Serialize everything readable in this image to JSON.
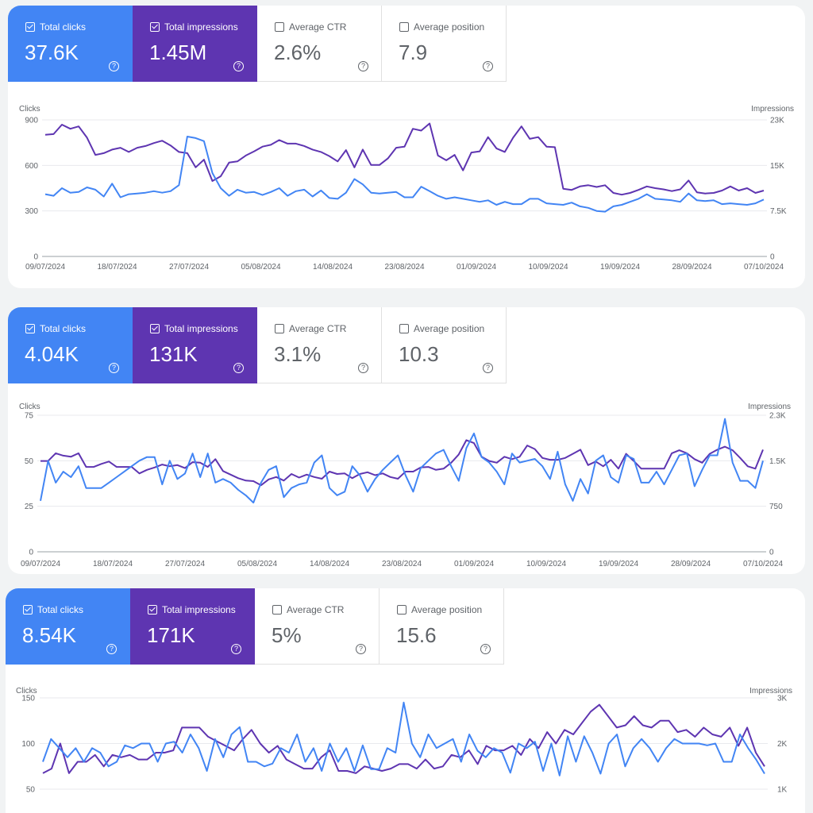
{
  "labels": {
    "clicks": "Total clicks",
    "impressions": "Total impressions",
    "ctr": "Average CTR",
    "position": "Average position",
    "help": "?"
  },
  "colors": {
    "clicks": "#4285f4",
    "impressions": "#5e35b1"
  },
  "panels": [
    {
      "metrics": {
        "clicks": "37.6K",
        "impressions": "1.45M",
        "ctr": "2.6%",
        "position": "7.9"
      },
      "checked": {
        "clicks": true,
        "impressions": true,
        "ctr": false,
        "position": false
      }
    },
    {
      "metrics": {
        "clicks": "4.04K",
        "impressions": "131K",
        "ctr": "3.1%",
        "position": "10.3"
      },
      "checked": {
        "clicks": true,
        "impressions": true,
        "ctr": false,
        "position": false
      }
    },
    {
      "metrics": {
        "clicks": "8.54K",
        "impressions": "171K",
        "ctr": "5%",
        "position": "15.6"
      },
      "checked": {
        "clicks": true,
        "impressions": true,
        "ctr": false,
        "position": false
      }
    }
  ],
  "chart_data": [
    {
      "type": "line",
      "ylabel_left": "Clicks",
      "ylabel_right": "Impressions",
      "left_ticks": [
        "0",
        "300",
        "600",
        "900"
      ],
      "left_ylim": [
        0,
        900
      ],
      "right_ticks": [
        "0",
        "7.5K",
        "15K",
        "23K"
      ],
      "right_ylim": [
        0,
        23000
      ],
      "x_tick_labels": [
        "09/07/2024",
        "18/07/2024",
        "27/07/2024",
        "05/08/2024",
        "14/08/2024",
        "23/08/2024",
        "01/09/2024",
        "10/09/2024",
        "19/09/2024",
        "28/09/2024",
        "07/10/2024"
      ],
      "series": [
        {
          "name": "Clicks",
          "axis": "left",
          "values": [
            410,
            400,
            450,
            420,
            425,
            455,
            440,
            395,
            480,
            390,
            410,
            415,
            420,
            430,
            420,
            430,
            470,
            790,
            780,
            760,
            550,
            450,
            400,
            440,
            420,
            425,
            405,
            425,
            450,
            400,
            430,
            440,
            395,
            435,
            385,
            380,
            420,
            510,
            475,
            420,
            415,
            420,
            425,
            390,
            390,
            460,
            430,
            400,
            380,
            390,
            380,
            370,
            360,
            370,
            340,
            360,
            345,
            345,
            380,
            380,
            350,
            345,
            340,
            355,
            330,
            320,
            300,
            295,
            330,
            340,
            360,
            380,
            410,
            380,
            375,
            370,
            360,
            415,
            370,
            365,
            370,
            345,
            350,
            345,
            340,
            350,
            375
          ]
        },
        {
          "name": "Impressions",
          "axis": "right",
          "values": [
            20500,
            20600,
            22200,
            21500,
            21900,
            20000,
            17100,
            17400,
            18000,
            18300,
            17600,
            18300,
            18600,
            19100,
            19500,
            18700,
            17600,
            17400,
            15000,
            16300,
            12700,
            13500,
            15800,
            16000,
            17000,
            17700,
            18500,
            18800,
            19600,
            19000,
            19000,
            18600,
            18000,
            17600,
            16900,
            16000,
            17900,
            15000,
            18000,
            15400,
            15400,
            16500,
            18300,
            18500,
            21500,
            21200,
            22400,
            17000,
            16200,
            17100,
            14500,
            17500,
            17700,
            20100,
            18200,
            17600,
            20000,
            21900,
            19800,
            20100,
            18500,
            18400,
            11400,
            11200,
            11800,
            12000,
            11700,
            12000,
            10700,
            10400,
            10700,
            11200,
            11800,
            11500,
            11300,
            11000,
            11300,
            12800,
            10800,
            10600,
            10700,
            11100,
            11800,
            11100,
            11500,
            10700,
            11100
          ]
        }
      ]
    },
    {
      "type": "line",
      "ylabel_left": "Clicks",
      "ylabel_right": "Impressions",
      "left_ticks": [
        "0",
        "25",
        "50",
        "75"
      ],
      "left_ylim": [
        0,
        75
      ],
      "right_ticks": [
        "0",
        "750",
        "1.5K",
        "2.3K"
      ],
      "right_ylim": [
        0,
        2300
      ],
      "x_tick_labels": [
        "09/07/2024",
        "18/07/2024",
        "27/07/2024",
        "05/08/2024",
        "14/08/2024",
        "23/08/2024",
        "01/09/2024",
        "10/09/2024",
        "19/09/2024",
        "28/09/2024",
        "07/10/2024"
      ],
      "series": [
        {
          "name": "Clicks",
          "axis": "left",
          "values": [
            28,
            50,
            38,
            44,
            41,
            47,
            35,
            35,
            35,
            38,
            41,
            44,
            47,
            50,
            52,
            52,
            37,
            50,
            40,
            43,
            54,
            41,
            54,
            38,
            40,
            38,
            34,
            31,
            27,
            38,
            45,
            47,
            30,
            35,
            37,
            38,
            49,
            53,
            35,
            31,
            33,
            47,
            42,
            33,
            40,
            45,
            49,
            53,
            42,
            33,
            46,
            50,
            54,
            56,
            47,
            39,
            57,
            65,
            52,
            49,
            44,
            37,
            54,
            49,
            50,
            51,
            47,
            40,
            55,
            37,
            28,
            40,
            32,
            50,
            53,
            41,
            38,
            53,
            51,
            38,
            38,
            44,
            37,
            45,
            53,
            54,
            36,
            45,
            53,
            53,
            73,
            49,
            39,
            39,
            35,
            50
          ]
        },
        {
          "name": "Impressions",
          "axis": "right",
          "values": [
            1530,
            1530,
            1660,
            1620,
            1600,
            1660,
            1430,
            1430,
            1480,
            1520,
            1430,
            1430,
            1430,
            1320,
            1380,
            1420,
            1470,
            1440,
            1460,
            1410,
            1510,
            1500,
            1430,
            1560,
            1360,
            1300,
            1240,
            1200,
            1190,
            1120,
            1220,
            1260,
            1200,
            1310,
            1250,
            1300,
            1260,
            1230,
            1350,
            1310,
            1320,
            1240,
            1310,
            1340,
            1290,
            1320,
            1260,
            1230,
            1350,
            1350,
            1420,
            1430,
            1380,
            1400,
            1500,
            1640,
            1880,
            1830,
            1600,
            1530,
            1500,
            1600,
            1560,
            1600,
            1790,
            1730,
            1580,
            1550,
            1550,
            1580,
            1650,
            1720,
            1460,
            1520,
            1440,
            1550,
            1400,
            1650,
            1530,
            1400,
            1400,
            1400,
            1400,
            1660,
            1710,
            1660,
            1560,
            1500,
            1650,
            1720,
            1770,
            1710,
            1580,
            1440,
            1400,
            1720
          ]
        }
      ]
    },
    {
      "type": "line",
      "ylabel_left": "Clicks",
      "ylabel_right": "Impressions",
      "left_ticks": [
        "50",
        "100",
        "150"
      ],
      "left_ylim": [
        50,
        150
      ],
      "right_ticks": [
        "1K",
        "2K",
        "3K"
      ],
      "right_ylim": [
        1000,
        3000
      ],
      "x_tick_labels": [],
      "series": [
        {
          "name": "Clicks",
          "axis": "left",
          "values": [
            80,
            105,
            95,
            85,
            95,
            80,
            95,
            90,
            75,
            80,
            98,
            95,
            100,
            100,
            80,
            100,
            102,
            90,
            110,
            95,
            70,
            105,
            85,
            110,
            118,
            80,
            80,
            75,
            78,
            95,
            90,
            110,
            80,
            95,
            70,
            100,
            80,
            95,
            70,
            98,
            72,
            72,
            95,
            90,
            145,
            100,
            85,
            110,
            95,
            100,
            105,
            80,
            110,
            92,
            85,
            95,
            90,
            68,
            100,
            95,
            102,
            70,
            100,
            65,
            108,
            80,
            108,
            90,
            67,
            100,
            110,
            75,
            95,
            105,
            95,
            80,
            95,
            105,
            100,
            100,
            100,
            98,
            100,
            80,
            80,
            110,
            95,
            82,
            67
          ]
        },
        {
          "name": "Impressions",
          "axis": "right",
          "values": [
            1350,
            1450,
            2000,
            1350,
            1600,
            1600,
            1750,
            1500,
            1750,
            1700,
            1750,
            1650,
            1650,
            1800,
            1800,
            1850,
            2350,
            2350,
            2350,
            2150,
            2050,
            1950,
            1850,
            2100,
            2300,
            2000,
            1800,
            1950,
            1650,
            1550,
            1450,
            1450,
            1700,
            1850,
            1400,
            1400,
            1350,
            1500,
            1450,
            1400,
            1450,
            1550,
            1550,
            1450,
            1650,
            1450,
            1500,
            1750,
            1700,
            1850,
            1550,
            1950,
            1850,
            1850,
            1950,
            1750,
            2100,
            1900,
            2250,
            2000,
            2300,
            2200,
            2450,
            2700,
            2850,
            2600,
            2350,
            2400,
            2600,
            2400,
            2350,
            2500,
            2500,
            2250,
            2300,
            2150,
            2350,
            2200,
            2150,
            2350,
            1950,
            2350,
            1800,
            1500
          ]
        }
      ]
    }
  ]
}
